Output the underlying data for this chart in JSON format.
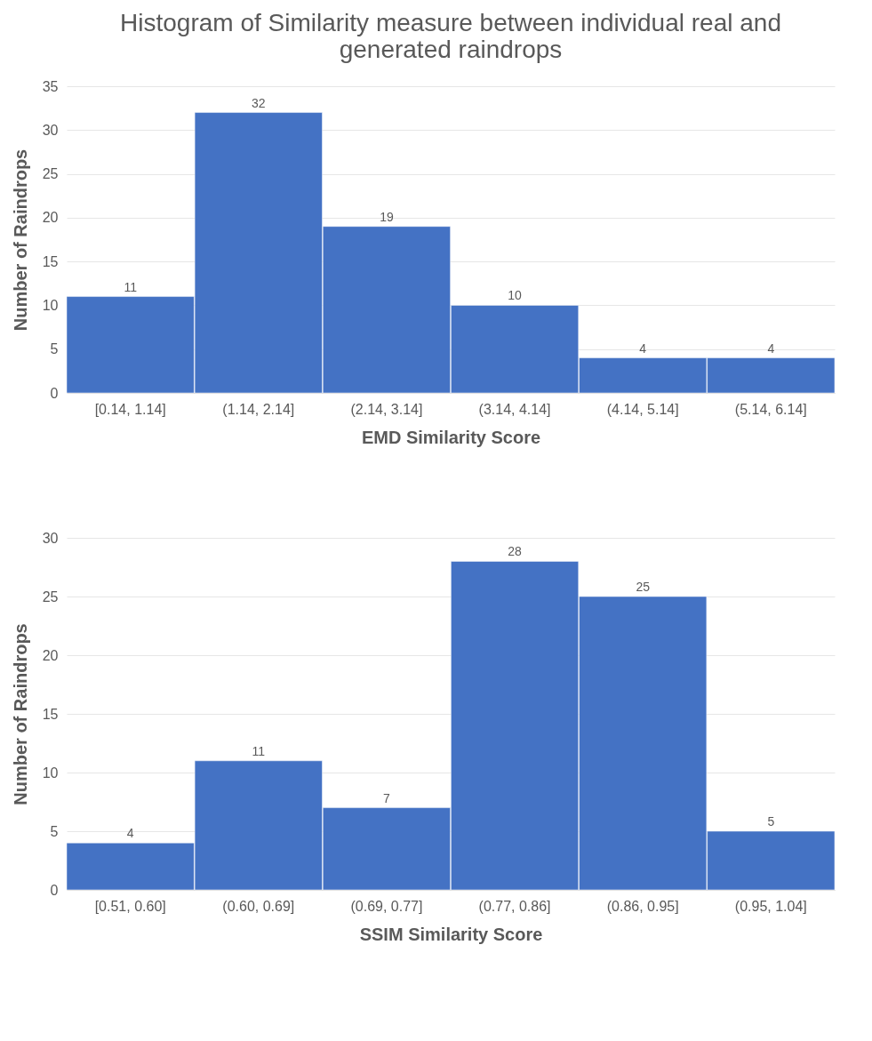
{
  "chart_data": [
    {
      "type": "bar",
      "title": "Histogram of Similarity measure between individual real and generated raindrops",
      "xlabel": "EMD Similarity Score",
      "ylabel": "Number of Raindrops",
      "categories": [
        "[0.14, 1.14]",
        "(1.14, 2.14]",
        "(2.14, 3.14]",
        "(3.14, 4.14]",
        "(4.14, 5.14]",
        "(5.14, 6.14]"
      ],
      "values": [
        11,
        32,
        19,
        10,
        4,
        4
      ],
      "color": "#4472c4",
      "ylim": [
        0,
        35
      ],
      "yticks": [
        0,
        5,
        10,
        15,
        20,
        25,
        30,
        35
      ],
      "grid": "y",
      "data_labels": true
    },
    {
      "type": "bar",
      "xlabel": "SSIM Similarity Score",
      "ylabel": "Number of Raindrops",
      "categories": [
        "[0.51, 0.60]",
        "(0.60, 0.69]",
        "(0.69, 0.77]",
        "(0.77, 0.86]",
        "(0.86, 0.95]",
        "(0.95, 1.04]"
      ],
      "values": [
        4,
        11,
        7,
        28,
        25,
        5
      ],
      "color": "#4472c4",
      "ylim": [
        0,
        30
      ],
      "yticks": [
        0,
        5,
        10,
        15,
        20,
        25,
        30
      ],
      "grid": "y",
      "data_labels": true
    }
  ]
}
